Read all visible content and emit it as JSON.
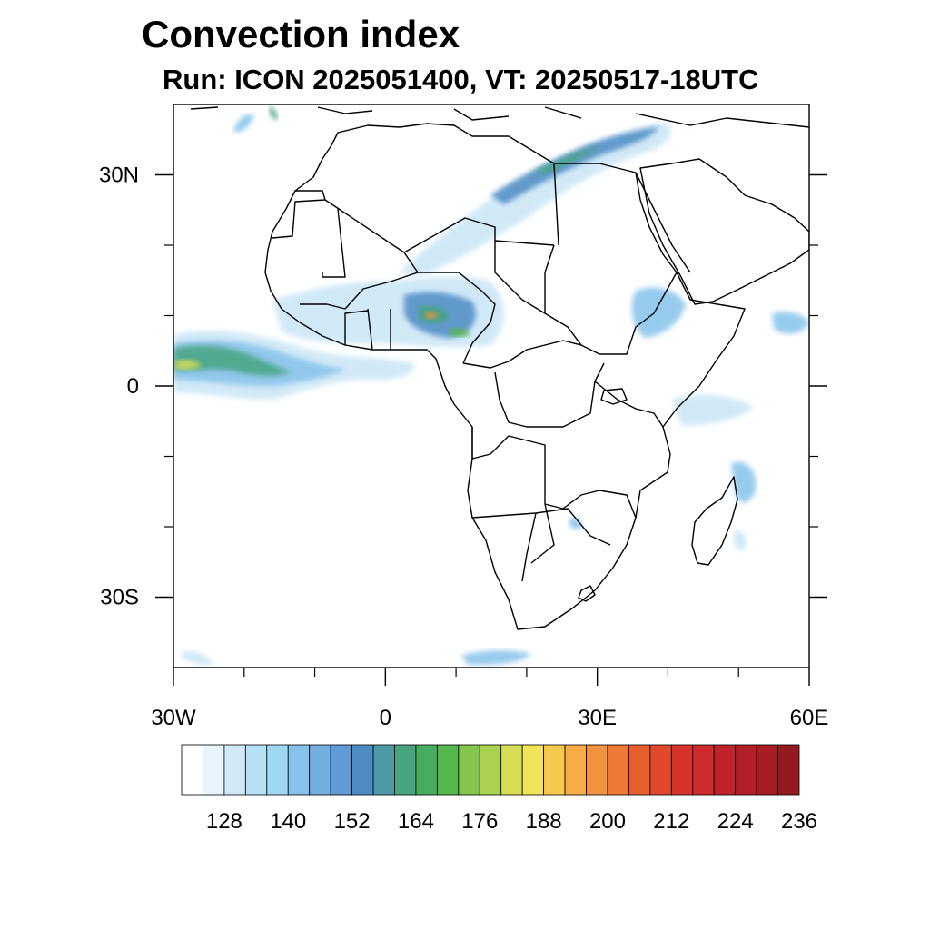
{
  "title": "Convection index",
  "subtitle": "Run: ICON 2025051400,  VT: 20250517-18UTC",
  "map": {
    "region": "Africa",
    "lon_range": [
      -30,
      60
    ],
    "lat_range": [
      -40,
      40
    ],
    "lon_ticks": [
      {
        "lon": -30,
        "label": "30W"
      },
      {
        "lon": 0,
        "label": "0"
      },
      {
        "lon": 30,
        "label": "30E"
      },
      {
        "lon": 60,
        "label": "60E"
      }
    ],
    "lat_ticks": [
      {
        "lat": 30,
        "label": "30N"
      },
      {
        "lat": 0,
        "label": "0"
      },
      {
        "lat": -30,
        "label": "30S"
      }
    ],
    "minor_lon_ticks": [
      -20,
      -10,
      10,
      20,
      40,
      50
    ],
    "minor_lat_ticks": [
      20,
      10,
      -10,
      -20
    ]
  },
  "colorbar": {
    "colors": [
      "#ffffff",
      "#e8f4fb",
      "#cfe9f7",
      "#b7e0f5",
      "#9fd6f2",
      "#86c2ea",
      "#73aee0",
      "#5f9bd4",
      "#4f8cc5",
      "#4c9aa6",
      "#47a47f",
      "#45ad5d",
      "#55b84c",
      "#83c54f",
      "#aad250",
      "#d7de55",
      "#f1e459",
      "#f6c84e",
      "#f6ad45",
      "#f3933d",
      "#ef7834",
      "#e85e2e",
      "#e04a2b",
      "#d6322b",
      "#cd2b2d",
      "#c0232b",
      "#b31e28",
      "#a71c24",
      "#931a1e"
    ],
    "tick_labels": [
      "128",
      "140",
      "152",
      "164",
      "176",
      "188",
      "200",
      "212",
      "224",
      "236"
    ]
  },
  "field_colors": {
    "light": "#c9e6f6",
    "mid": "#86c2ea",
    "blue": "#4f8cc5",
    "green": "#47a47f",
    "bright_green": "#55b84c",
    "yellow": "#d7de55",
    "orange": "#f3933d"
  }
}
